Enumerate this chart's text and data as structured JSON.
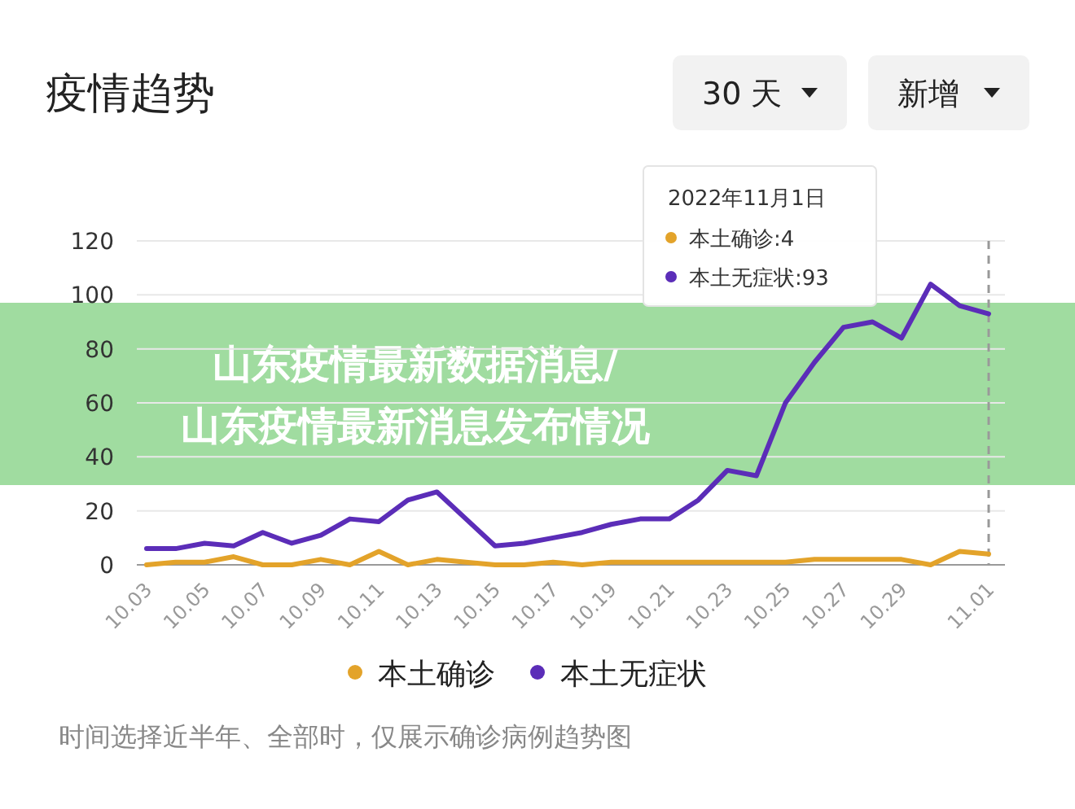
{
  "chart_data": {
    "type": "line",
    "title": "疫情趋势",
    "categories": [
      "10.03",
      null,
      "10.05",
      null,
      "10.07",
      null,
      "10.09",
      null,
      "10.11",
      null,
      "10.13",
      null,
      "10.15",
      null,
      "10.17",
      null,
      "10.19",
      null,
      "10.21",
      null,
      "10.23",
      null,
      "10.25",
      null,
      "10.27",
      null,
      "10.29",
      null,
      null,
      "11.01"
    ],
    "series": [
      {
        "name": "本土确诊",
        "color": "#e3a32a",
        "values": [
          0,
          1,
          1,
          3,
          0,
          0,
          2,
          0,
          5,
          0,
          2,
          1,
          0,
          0,
          1,
          0,
          1,
          1,
          1,
          1,
          1,
          1,
          1,
          2,
          2,
          2,
          2,
          0,
          5,
          4
        ]
      },
      {
        "name": "本土无症状",
        "color": "#5b2db8",
        "values": [
          6,
          6,
          8,
          7,
          12,
          8,
          11,
          17,
          16,
          24,
          27,
          17,
          7,
          8,
          10,
          12,
          15,
          17,
          17,
          24,
          35,
          33,
          60,
          75,
          88,
          90,
          84,
          104,
          96,
          93
        ]
      }
    ],
    "ylim": [
      0,
      120
    ],
    "yticks": [
      0,
      20,
      40,
      60,
      80,
      100,
      120
    ],
    "grid": "y",
    "legend": "bottom",
    "ref_lines": [
      {
        "axis": "x",
        "value": "11.01",
        "line_style": "dashed",
        "color": "#999999"
      }
    ],
    "annotations": [
      "30 天",
      "新增",
      "2022年11月1日",
      "本土确诊:4",
      "本土无症状:93",
      "山东疫情最新数据消息/山东疫情最新消息发布情况",
      "时间选择近半年、全部时，仅展示确诊病例趋势图"
    ]
  }
}
